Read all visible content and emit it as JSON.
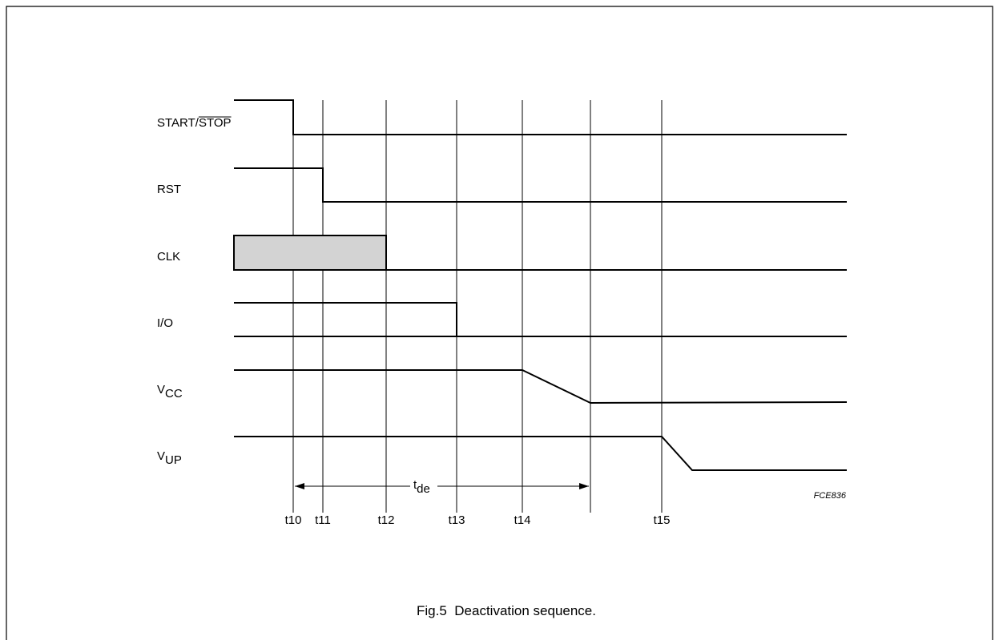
{
  "figure": {
    "caption": "Fig.5  Deactivation sequence.",
    "code": "FCE836"
  },
  "signals": [
    {
      "key": "start_stop",
      "label": "START/",
      "label_overline": "STOP"
    },
    {
      "key": "rst",
      "label": "RST"
    },
    {
      "key": "clk",
      "label": "CLK"
    },
    {
      "key": "io",
      "label": "I/O"
    },
    {
      "key": "vcc",
      "label": "V",
      "sub": "CC"
    },
    {
      "key": "vup",
      "label": "V",
      "sub": "UP"
    }
  ],
  "time_markers": [
    "t10",
    "t11",
    "t12",
    "t13",
    "t14",
    "t15"
  ],
  "interval": {
    "label": "t",
    "sub": "de"
  },
  "colors": {
    "line": "#000000",
    "clk_fill": "#d3d3d3",
    "frame": "#000000"
  }
}
